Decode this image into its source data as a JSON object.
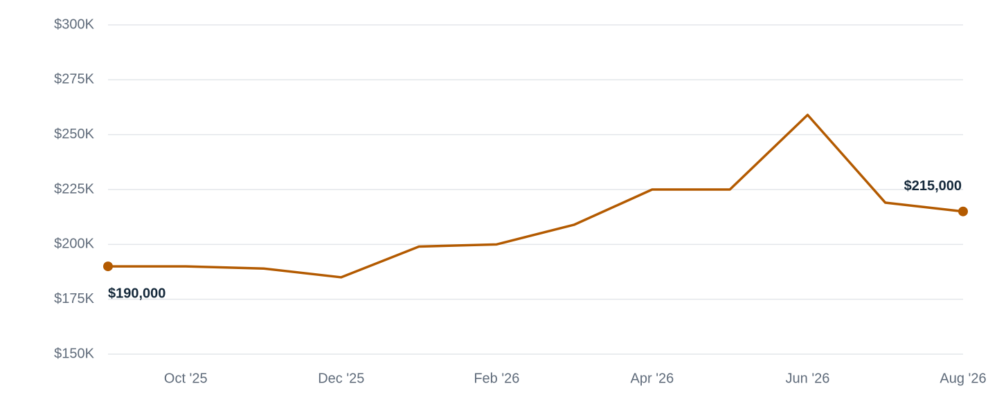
{
  "chart_data": {
    "type": "line",
    "categories": [
      null,
      "Oct '25",
      null,
      "Dec '25",
      null,
      "Feb '26",
      null,
      "Apr '26",
      null,
      "Jun '26",
      null,
      "Aug '26"
    ],
    "series": [
      {
        "color": "#b35a00",
        "values": [
          190000,
          190000,
          189000,
          185000,
          199000,
          200000,
          209000,
          225000,
          225000,
          259000,
          219000,
          215000
        ],
        "value_labels": [
          "$190,000",
          null,
          null,
          null,
          null,
          null,
          null,
          null,
          null,
          null,
          null,
          "$215,000"
        ]
      }
    ],
    "ylim": [
      150000,
      300000
    ],
    "yticks": [
      {
        "value": 150000,
        "label": "$150K"
      },
      {
        "value": 175000,
        "label": "$175K"
      },
      {
        "value": 200000,
        "label": "$200K"
      },
      {
        "value": 225000,
        "label": "$225K"
      },
      {
        "value": 250000,
        "label": "$250K"
      },
      {
        "value": 275000,
        "label": "$275K"
      },
      {
        "value": 300000,
        "label": "$300K"
      }
    ],
    "grid": true
  }
}
